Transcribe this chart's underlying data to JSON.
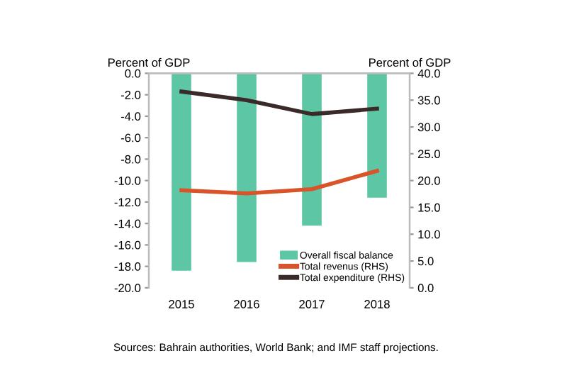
{
  "chart_data": {
    "type": "bar",
    "ylabel": "Percent of GDP",
    "y2label": "Percent of GDP",
    "categories": [
      "2015",
      "2016",
      "2017",
      "2018"
    ],
    "series": [
      {
        "name": "Overall fiscal balance",
        "color": "#5cc6a5",
        "values": [
          -18.4,
          -17.6,
          -14.2,
          -11.6
        ]
      },
      {
        "name": "Total revenus (RHS)",
        "type": "line",
        "axis": "y2",
        "color": "#d9542b",
        "values": [
          18.2,
          17.6,
          18.4,
          21.8
        ]
      },
      {
        "name": "Total expenditure (RHS)",
        "type": "line",
        "axis": "y2",
        "color": "#3a2a2a",
        "values": [
          36.6,
          35.0,
          32.4,
          33.4
        ]
      }
    ],
    "ylim": [
      -20,
      0
    ],
    "yticks": [
      {
        "value": -20,
        "label": "-20.0"
      },
      {
        "value": -18,
        "label": "-18.0"
      },
      {
        "value": -16,
        "label": "-16.0"
      },
      {
        "value": -14,
        "label": "-14.0"
      },
      {
        "value": -12,
        "label": "-12.0"
      },
      {
        "value": -10,
        "label": "-10.0"
      },
      {
        "value": -8,
        "label": "-8.0"
      },
      {
        "value": -6,
        "label": "-6.0"
      },
      {
        "value": -4,
        "label": "-4.0"
      },
      {
        "value": -2,
        "label": "-2.0"
      },
      {
        "value": 0,
        "label": "0.0"
      }
    ],
    "y2lim": [
      0,
      40
    ],
    "y2ticks": [
      {
        "value": 0,
        "label": "0.0"
      },
      {
        "value": 5,
        "label": "5.0"
      },
      {
        "value": 10,
        "label": "10.0"
      },
      {
        "value": 15,
        "label": "15.0"
      },
      {
        "value": 20,
        "label": "20.0"
      },
      {
        "value": 25,
        "label": "25.0"
      },
      {
        "value": 30,
        "label": "30.0"
      },
      {
        "value": 35,
        "label": "35.0"
      },
      {
        "value": 40,
        "label": "40.0"
      }
    ],
    "legend": "bottom right",
    "grid": false,
    "annotations": [
      "Sources: Bahrain authorities, World Bank; and IMF staff projections."
    ]
  }
}
